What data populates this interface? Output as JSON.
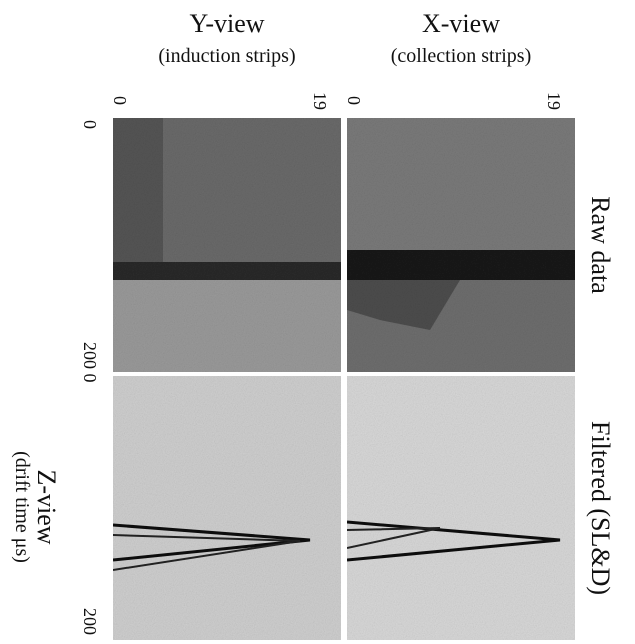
{
  "columns": [
    {
      "title": "Y-view",
      "subtitle": "(induction strips)",
      "tick_start": "0",
      "tick_end": "19"
    },
    {
      "title": "X-view",
      "subtitle": "(collection strips)",
      "tick_start": "0",
      "tick_end": "19"
    }
  ],
  "rows": [
    {
      "label": "Raw data"
    },
    {
      "label": "Filtered (SL&D)"
    }
  ],
  "z_axis": {
    "title": "Z-view",
    "subtitle": "(drift time μs)",
    "ticks": [
      "0",
      "200 0",
      "200"
    ]
  }
}
